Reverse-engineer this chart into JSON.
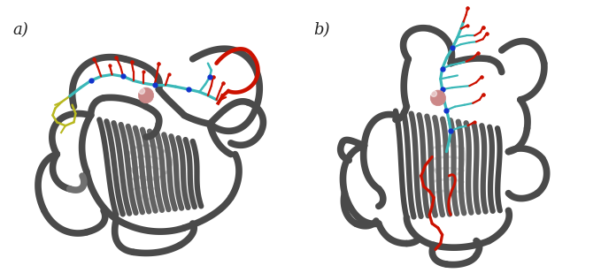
{
  "figure_width": 6.79,
  "figure_height": 3.09,
  "dpi": 100,
  "background_color": "#ffffff",
  "label_a": "a)",
  "label_b": "b)",
  "label_fontsize": 13,
  "label_color": "#222222",
  "protein_gray": "#707070",
  "protein_dark": "#4a4a4a",
  "protein_light": "#a0a0a0",
  "protein_lighter": "#c8c8c8",
  "cyan_color": "#3ab8b8",
  "red_color": "#cc1100",
  "blue_color": "#1133cc",
  "yellow_color": "#b8b820",
  "pink_color": "#cc8888",
  "white": "#ffffff"
}
